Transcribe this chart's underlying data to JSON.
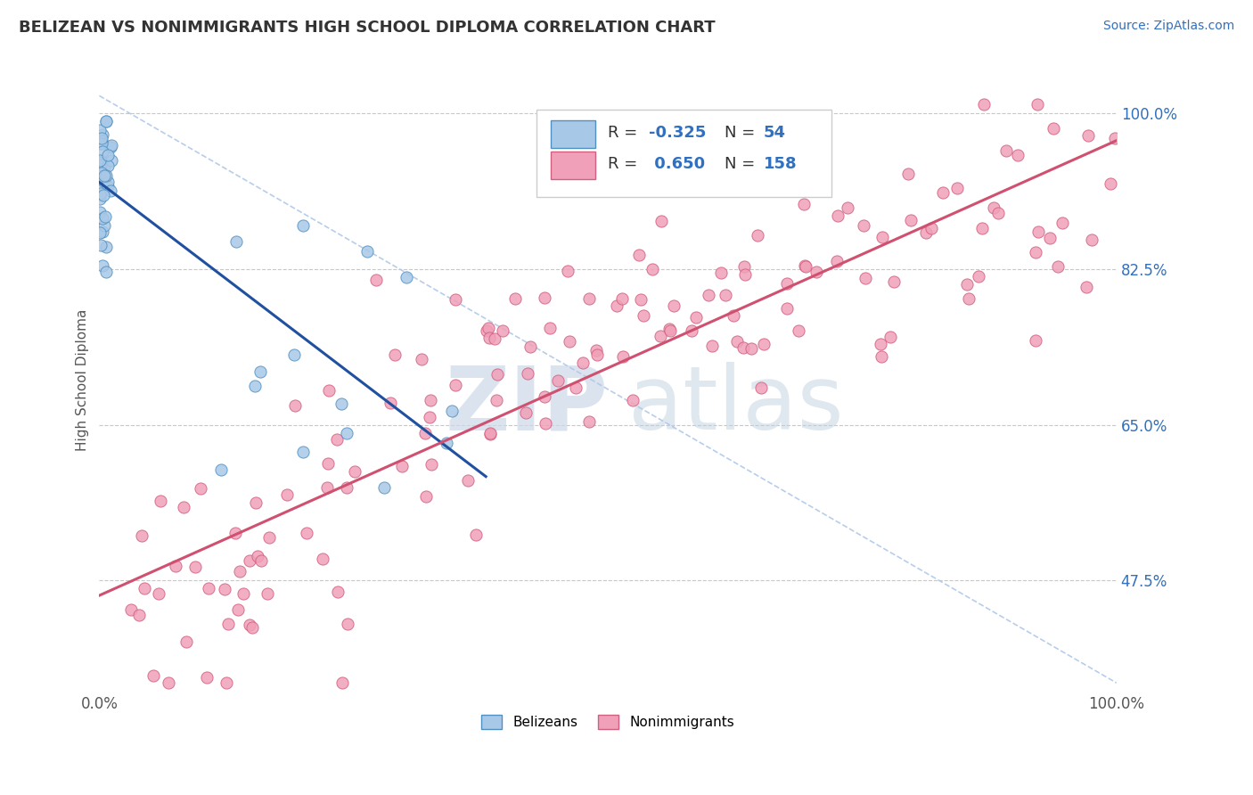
{
  "title": "BELIZEAN VS NONIMMIGRANTS HIGH SCHOOL DIPLOMA CORRELATION CHART",
  "source": "Source: ZipAtlas.com",
  "ylabel": "High School Diploma",
  "xlim": [
    0.0,
    1.0
  ],
  "ylim": [
    0.35,
    1.05
  ],
  "right_yticks": [
    0.475,
    0.65,
    0.825,
    1.0
  ],
  "right_yticklabels": [
    "47.5%",
    "65.0%",
    "82.5%",
    "100.0%"
  ],
  "blue_color": "#a8c8e8",
  "blue_edge": "#5090c0",
  "pink_color": "#f0a0b8",
  "pink_edge": "#d06080",
  "blue_line_color": "#2050a0",
  "pink_line_color": "#d05070",
  "diagonal_color": "#b0c8e8",
  "background_color": "#ffffff",
  "grid_color": "#c8c8c8",
  "watermark_zip_color": "#ccd8e8",
  "watermark_atlas_color": "#c0d0e0",
  "blue_r": "-0.325",
  "blue_n": "54",
  "pink_r": "0.650",
  "pink_n": "158",
  "legend_label_color": "#333333",
  "legend_value_color": "#3070c0",
  "source_color": "#3070c0",
  "ytick_color": "#3070c0"
}
